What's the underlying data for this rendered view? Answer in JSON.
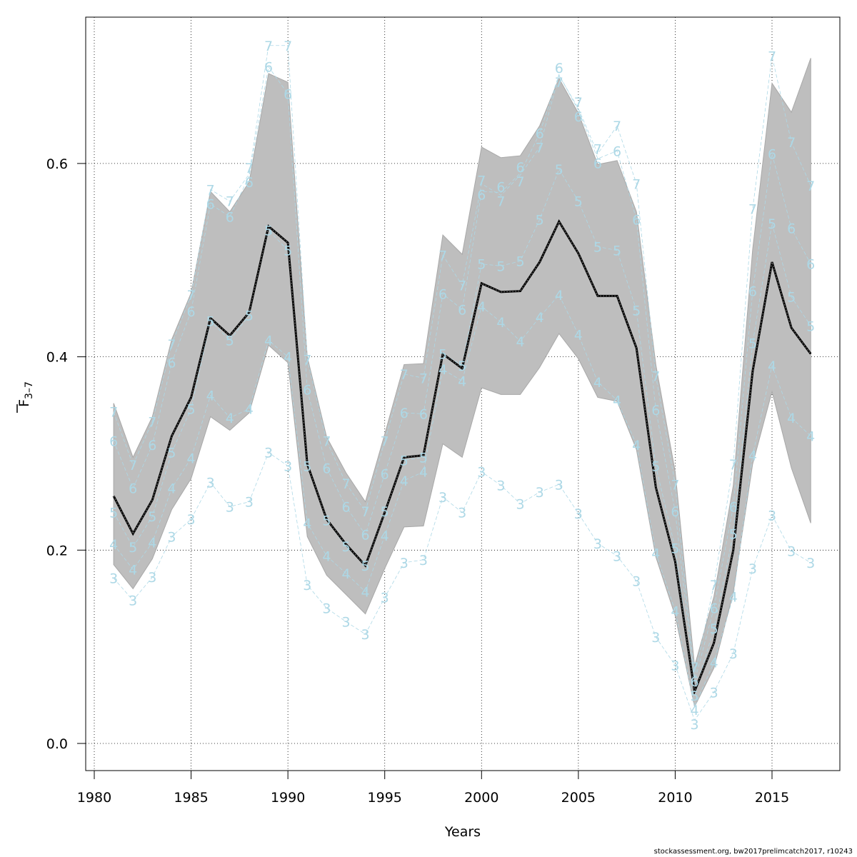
{
  "chart_data": {
    "type": "line",
    "title": "",
    "xlabel": "Years",
    "ylabel": "F",
    "ylabel_subscript": "3–7",
    "xlim": [
      1980,
      2018
    ],
    "ylim": [
      -0.025,
      0.755
    ],
    "xticks": [
      1980,
      1985,
      1990,
      1995,
      2000,
      2005,
      2010,
      2015
    ],
    "yticks": [
      0.0,
      0.2,
      0.4,
      0.6
    ],
    "ytick_labels": [
      "0.0",
      "0.2",
      "0.4",
      "0.6"
    ],
    "grid": true,
    "colors": {
      "band": "#bebebe",
      "mean": "#000000",
      "ages": "#add8e6"
    },
    "x": [
      1981,
      1982,
      1983,
      1984,
      1985,
      1986,
      1987,
      1988,
      1989,
      1990,
      1991,
      1992,
      1993,
      1994,
      1995,
      1996,
      1997,
      1998,
      1999,
      2000,
      2001,
      2002,
      2003,
      2004,
      2005,
      2006,
      2007,
      2008,
      2009,
      2010,
      2011,
      2012,
      2013,
      2014,
      2015,
      2016,
      2017
    ],
    "mean": [
      0.256,
      0.217,
      0.252,
      0.318,
      0.358,
      0.44,
      0.422,
      0.446,
      0.535,
      0.518,
      0.289,
      0.232,
      0.206,
      0.184,
      0.239,
      0.296,
      0.298,
      0.403,
      0.388,
      0.476,
      0.467,
      0.468,
      0.498,
      0.54,
      0.507,
      0.463,
      0.463,
      0.409,
      0.265,
      0.188,
      0.054,
      0.104,
      0.2,
      0.385,
      0.498,
      0.43,
      0.403
    ],
    "band_upper": [
      0.352,
      0.296,
      0.338,
      0.418,
      0.466,
      0.571,
      0.55,
      0.581,
      0.693,
      0.684,
      0.4,
      0.317,
      0.28,
      0.25,
      0.32,
      0.392,
      0.393,
      0.526,
      0.506,
      0.617,
      0.606,
      0.608,
      0.639,
      0.688,
      0.652,
      0.599,
      0.603,
      0.55,
      0.392,
      0.281,
      0.08,
      0.152,
      0.267,
      0.511,
      0.683,
      0.653,
      0.709
    ],
    "band_lower": [
      0.185,
      0.16,
      0.191,
      0.242,
      0.274,
      0.338,
      0.324,
      0.342,
      0.412,
      0.394,
      0.214,
      0.174,
      0.154,
      0.134,
      0.181,
      0.224,
      0.225,
      0.31,
      0.296,
      0.368,
      0.361,
      0.361,
      0.389,
      0.424,
      0.398,
      0.358,
      0.354,
      0.304,
      0.193,
      0.132,
      0.038,
      0.078,
      0.156,
      0.289,
      0.364,
      0.285,
      0.228
    ],
    "series": [
      {
        "name": "3",
        "values": [
          0.171,
          0.148,
          0.172,
          0.214,
          0.232,
          0.27,
          0.245,
          0.25,
          0.301,
          0.287,
          0.164,
          0.14,
          0.126,
          0.113,
          0.151,
          0.187,
          0.19,
          0.255,
          0.239,
          0.281,
          0.267,
          0.248,
          0.26,
          0.268,
          0.238,
          0.207,
          0.194,
          0.168,
          0.11,
          0.081,
          0.024,
          0.053,
          0.093,
          0.181,
          0.236,
          0.199,
          0.187
        ]
      },
      {
        "name": "4",
        "values": [
          0.206,
          0.18,
          0.208,
          0.264,
          0.295,
          0.36,
          0.337,
          0.346,
          0.417,
          0.4,
          0.228,
          0.194,
          0.176,
          0.157,
          0.215,
          0.272,
          0.281,
          0.387,
          0.375,
          0.452,
          0.436,
          0.416,
          0.441,
          0.464,
          0.423,
          0.374,
          0.355,
          0.309,
          0.197,
          0.137,
          0.038,
          0.084,
          0.152,
          0.298,
          0.391,
          0.337,
          0.318
        ]
      },
      {
        "name": "5",
        "values": [
          0.239,
          0.203,
          0.235,
          0.301,
          0.346,
          0.437,
          0.417,
          0.443,
          0.531,
          0.51,
          0.287,
          0.231,
          0.204,
          0.184,
          0.24,
          0.293,
          0.296,
          0.403,
          0.391,
          0.496,
          0.494,
          0.499,
          0.542,
          0.594,
          0.561,
          0.514,
          0.51,
          0.448,
          0.287,
          0.202,
          0.052,
          0.119,
          0.217,
          0.414,
          0.538,
          0.462,
          0.432
        ]
      },
      {
        "name": "6",
        "values": [
          0.313,
          0.264,
          0.309,
          0.394,
          0.447,
          0.558,
          0.545,
          0.587,
          0.7,
          0.672,
          0.366,
          0.285,
          0.245,
          0.216,
          0.279,
          0.342,
          0.341,
          0.465,
          0.449,
          0.571,
          0.57,
          0.59,
          0.631,
          0.692,
          0.655,
          0.605,
          0.613,
          0.542,
          0.345,
          0.24,
          0.064,
          0.14,
          0.245,
          0.468,
          0.61,
          0.533,
          0.496
        ]
      },
      {
        "name": "7",
        "values": [
          0.343,
          0.288,
          0.333,
          0.413,
          0.464,
          0.573,
          0.561,
          0.589,
          0.722,
          0.722,
          0.397,
          0.313,
          0.269,
          0.24,
          0.313,
          0.382,
          0.378,
          0.505,
          0.474,
          0.579,
          0.567,
          0.588,
          0.617,
          0.691,
          0.657,
          0.61,
          0.639,
          0.579,
          0.38,
          0.268,
          0.069,
          0.164,
          0.289,
          0.553,
          0.711,
          0.622,
          0.577
        ]
      }
    ]
  },
  "footer": "stockassessment.org, bw2017prelimcatch2017, r10243"
}
